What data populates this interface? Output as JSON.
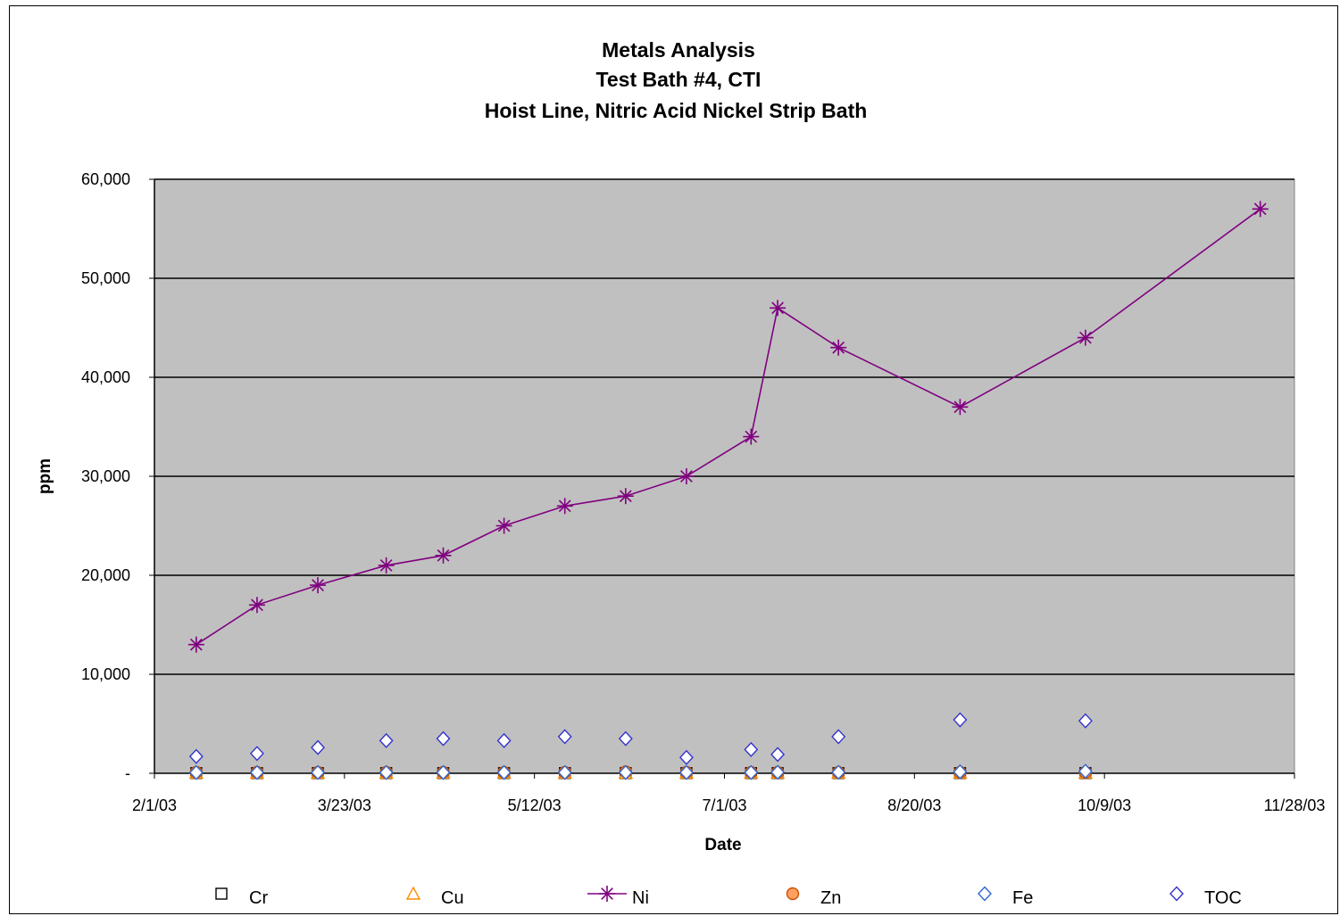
{
  "chart_data": {
    "type": "line",
    "title": [
      "Metals Analysis",
      "Test Bath #4, CTI",
      "Hoist Line, Nitric Acid Nickel Strip Bath"
    ],
    "xlabel": "Date",
    "ylabel": "ppm",
    "x_ticks": [
      "2/1/03",
      "3/23/03",
      "5/12/03",
      "7/1/03",
      "8/20/03",
      "10/9/03",
      "11/28/03"
    ],
    "y_ticks": [
      "-",
      "10,000",
      "20,000",
      "30,000",
      "40,000",
      "50,000",
      "60,000"
    ],
    "ylim": [
      0,
      60000
    ],
    "xlim": [
      "2003-02-01",
      "2003-11-28"
    ],
    "grid": "horizontal",
    "plot_background": "#c0c0c0",
    "legend_position": "bottom",
    "x": [
      "2003-02-12",
      "2003-02-28",
      "2003-03-16",
      "2003-04-03",
      "2003-04-18",
      "2003-05-04",
      "2003-05-20",
      "2003-06-05",
      "2003-06-21",
      "2003-07-08",
      "2003-07-15",
      "2003-07-31",
      "2003-09-01",
      "2003-10-04",
      "2003-11-19"
    ],
    "series": [
      {
        "name": "Cr",
        "marker": "square",
        "color": "#000000",
        "values": [
          20,
          20,
          20,
          20,
          20,
          20,
          20,
          20,
          20,
          20,
          20,
          20,
          20,
          20,
          null
        ]
      },
      {
        "name": "Cu",
        "marker": "triangle",
        "color": "#ff8c00",
        "values": [
          50,
          50,
          50,
          50,
          50,
          50,
          50,
          50,
          50,
          50,
          50,
          50,
          50,
          50,
          null
        ]
      },
      {
        "name": "Ni",
        "marker": "asterisk",
        "color": "#800080",
        "line": true,
        "values": [
          13000,
          17000,
          19000,
          21000,
          22000,
          25000,
          27000,
          28000,
          30000,
          34000,
          47000,
          43000,
          37000,
          44000,
          57000
        ]
      },
      {
        "name": "Zn",
        "marker": "circle",
        "color": "#ff8c3a",
        "values": [
          100,
          100,
          100,
          100,
          100,
          100,
          100,
          150,
          100,
          100,
          100,
          100,
          100,
          100,
          null
        ]
      },
      {
        "name": "Fe",
        "marker": "diamond",
        "color": "#3366cc",
        "values": [
          80,
          80,
          80,
          80,
          80,
          80,
          80,
          80,
          80,
          80,
          100,
          100,
          150,
          200,
          null
        ]
      },
      {
        "name": "TOC",
        "marker": "diamond",
        "color": "#3333cc",
        "values": [
          1700,
          2000,
          2600,
          3300,
          3500,
          3300,
          3700,
          3500,
          1600,
          2400,
          1900,
          3700,
          5400,
          5300,
          null
        ]
      }
    ]
  }
}
